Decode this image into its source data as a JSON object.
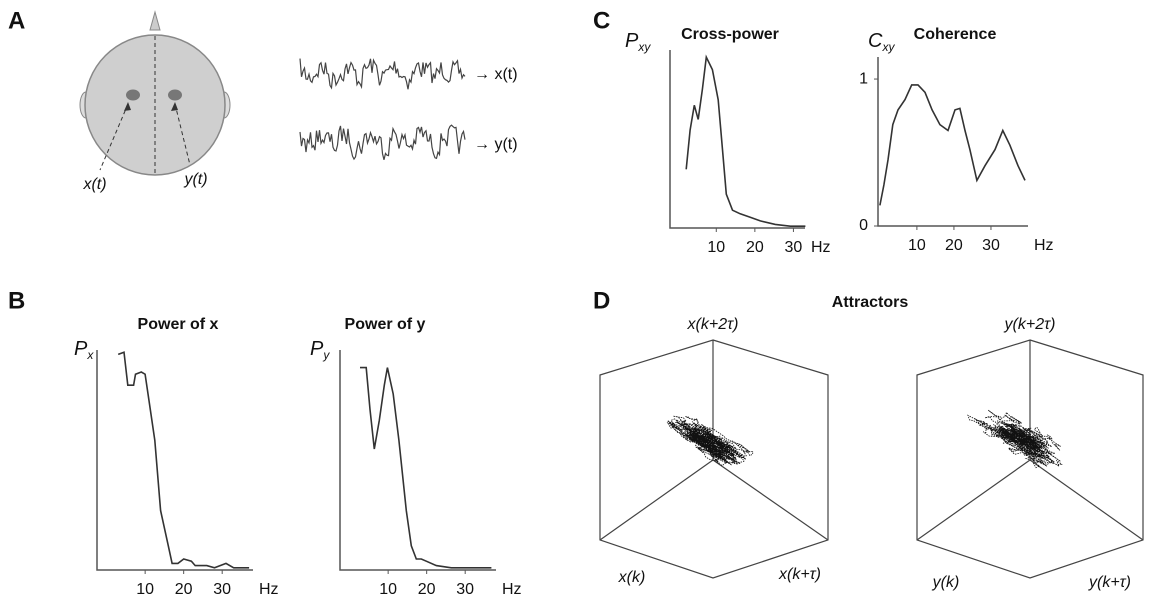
{
  "panels": {
    "a": {
      "label": "A",
      "sensors": [
        "x(t)",
        "y(t)"
      ],
      "signals": [
        "→ x(t)",
        "→ y(t)"
      ]
    },
    "b": {
      "label": "B"
    },
    "c": {
      "label": "C"
    },
    "d": {
      "label": "D",
      "title": "Attractors",
      "x_axes": [
        "x(k+2τ)",
        "x(k)",
        "x(k+τ)"
      ],
      "y_axes": [
        "y(k+2τ)",
        "y(k)",
        "y(k+τ)"
      ]
    }
  },
  "chart_data": [
    {
      "type": "line",
      "title": "Power of x",
      "y_label": "P",
      "y_label_sub": "x",
      "x_label": "Hz",
      "color": "#333333",
      "x": [
        3,
        4.5,
        5.5,
        7,
        7.5,
        9,
        10,
        11,
        12.5,
        14,
        16,
        17,
        18.5,
        20,
        22,
        23,
        26,
        28,
        31,
        33,
        37
      ],
      "values": [
        0.98,
        0.99,
        0.84,
        0.84,
        0.89,
        0.9,
        0.89,
        0.77,
        0.59,
        0.27,
        0.11,
        0.03,
        0.03,
        0.05,
        0.04,
        0.02,
        0.02,
        0.01,
        0.03,
        0.01,
        0.01
      ],
      "xlim": [
        -2.5,
        38
      ],
      "ylim": [
        0,
        1
      ],
      "xticks": [
        10,
        20,
        30
      ]
    },
    {
      "type": "line",
      "title": "Power of y",
      "y_label": "P",
      "y_label_sub": "y",
      "x_label": "Hz",
      "color": "#333333",
      "x": [
        2.7,
        4.3,
        5.3,
        6.4,
        7.7,
        9,
        9.8,
        11.3,
        12.8,
        14.7,
        16,
        17.3,
        18.6,
        19.9,
        22.5,
        26.4,
        31.6,
        36.8
      ],
      "values": [
        0.92,
        0.92,
        0.73,
        0.55,
        0.68,
        0.84,
        0.92,
        0.8,
        0.59,
        0.27,
        0.11,
        0.05,
        0.05,
        0.04,
        0.02,
        0.01,
        0.01,
        0.01
      ],
      "xlim": [
        -2.5,
        38
      ],
      "ylim": [
        0,
        1
      ],
      "xticks": [
        10,
        20,
        30
      ]
    },
    {
      "type": "line",
      "title": "Cross-power",
      "y_label": "P",
      "y_label_sub": "xy",
      "x_label": "Hz",
      "color": "#333333",
      "x": [
        2.2,
        3.2,
        4.3,
        5.3,
        6.4,
        7.4,
        9,
        10.5,
        11.6,
        12.6,
        14.2,
        16.2,
        18.8,
        21.4,
        25.3,
        29.2,
        33.1
      ],
      "values": [
        0.33,
        0.55,
        0.69,
        0.61,
        0.78,
        0.96,
        0.89,
        0.72,
        0.44,
        0.19,
        0.1,
        0.08,
        0.06,
        0.04,
        0.02,
        0.01,
        0.01
      ],
      "xlim": [
        -2,
        33
      ],
      "ylim": [
        0,
        1
      ],
      "xticks": [
        10,
        20,
        30
      ]
    },
    {
      "type": "line",
      "title": "Coherence",
      "y_label": "C",
      "y_label_sub": "xy",
      "x_label": "Hz",
      "color": "#333333",
      "x": [
        0,
        1.1,
        2.2,
        3.5,
        4.9,
        6.8,
        8.6,
        10.3,
        12.2,
        14.1,
        16.2,
        18.4,
        20.3,
        21.6,
        23,
        24.3,
        26.2,
        28.4,
        31.1,
        33.2,
        35.1,
        37.3,
        39.2
      ],
      "values": [
        0.14,
        0.28,
        0.45,
        0.69,
        0.79,
        0.86,
        0.96,
        0.96,
        0.91,
        0.79,
        0.69,
        0.65,
        0.79,
        0.8,
        0.65,
        0.52,
        0.31,
        0.41,
        0.52,
        0.65,
        0.55,
        0.41,
        0.31
      ],
      "xlim": [
        -0.5,
        40
      ],
      "ylim": [
        0,
        1.15
      ],
      "xticks": [
        10,
        20,
        30
      ],
      "yticks": [
        0,
        1
      ]
    }
  ]
}
